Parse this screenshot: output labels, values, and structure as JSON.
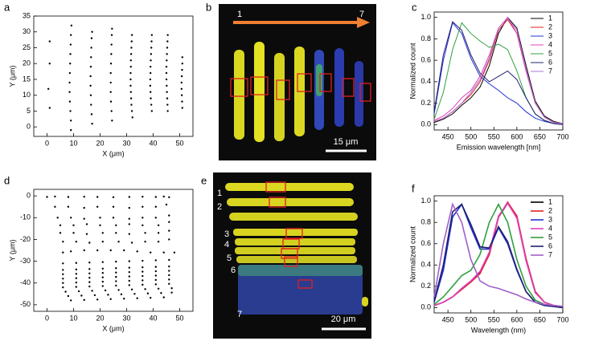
{
  "chart_data": [
    {
      "type": "scatter",
      "panel_label": "a",
      "xlabel": "X (μm)",
      "ylabel": "Y (μm)",
      "xlim": [
        -5,
        55
      ],
      "ylim": [
        -3,
        35
      ],
      "xticks": [
        0,
        10,
        20,
        30,
        40,
        50
      ],
      "yticks": [
        0,
        5,
        10,
        15,
        20,
        25,
        30,
        35
      ],
      "color": "#000000",
      "series": [
        {
          "x": [
            1,
            1,
            0.5,
            1
          ],
          "values": [
            27,
            20,
            12,
            6
          ]
        },
        {
          "x": [
            9,
            9,
            8.8,
            8.6,
            8.5,
            8.5,
            8.6,
            8.7,
            8.8,
            8.9,
            9,
            9.2
          ],
          "values": [
            -1,
            2,
            5,
            8,
            11,
            14,
            17,
            20,
            23,
            26,
            29,
            32
          ]
        },
        {
          "x": [
            17,
            16.8,
            16.6,
            16.5,
            16.4,
            16.4,
            16.5,
            16.6,
            16.7,
            16.8,
            17
          ],
          "values": [
            1,
            4,
            7,
            10,
            13,
            16,
            19,
            22,
            25,
            28,
            30
          ]
        },
        {
          "x": [
            24.5,
            24.3,
            24.1,
            24,
            24,
            24,
            24.1,
            24.2,
            24.3,
            24.4,
            24.5
          ],
          "values": [
            2,
            5,
            8,
            11,
            14,
            17,
            20,
            23,
            26,
            29,
            31
          ]
        },
        {
          "x": [
            32.2,
            32,
            31.8,
            31.7,
            31.6,
            31.5,
            31.5,
            31.5,
            31.6,
            31.6,
            31.7,
            31.8,
            31.9,
            32
          ],
          "values": [
            3,
            5,
            7,
            9,
            11,
            13,
            15,
            17,
            19,
            21,
            23,
            25,
            27,
            29
          ]
        },
        {
          "x": [
            39.5,
            39.3,
            39.1,
            39,
            38.9,
            38.9,
            39,
            39,
            39.1,
            39.2,
            39.3,
            39.4,
            39.5
          ],
          "values": [
            5,
            7,
            9,
            11,
            13,
            15,
            17,
            19,
            21,
            23,
            25,
            27,
            29
          ]
        },
        {
          "x": [
            45.5,
            45.4,
            45.3,
            45.2,
            45.1,
            45,
            45,
            45,
            45.1,
            45.2,
            45.3,
            45.4,
            45.5
          ],
          "values": [
            5,
            7,
            9,
            11,
            13,
            15,
            17,
            19,
            21,
            23,
            25,
            27,
            29
          ]
        },
        {
          "x": [
            51,
            50.9,
            50.8,
            50.7,
            50.7,
            50.8,
            50.9,
            51,
            51
          ],
          "values": [
            6,
            8,
            10,
            12,
            14,
            16,
            18,
            20,
            22
          ]
        }
      ]
    },
    {
      "type": "image",
      "panel_label": "b",
      "labels": [
        "1",
        "7"
      ],
      "scale_bar": "15 μm"
    },
    {
      "type": "line",
      "panel_label": "c",
      "xlabel": "Emission wavelength [nm]",
      "ylabel": "Normalized count",
      "xlim": [
        420,
        700
      ],
      "ylim": [
        -0.05,
        1.05
      ],
      "xticks": [
        450,
        500,
        550,
        600,
        650,
        700
      ],
      "yticks": [
        {
          "value": 0,
          "label": "0.0"
        },
        {
          "value": 0.2,
          "label": "0.2"
        },
        {
          "value": 0.4,
          "label": "0.4"
        },
        {
          "value": 0.6,
          "label": "0.6"
        },
        {
          "value": 0.8,
          "label": "0.8"
        },
        {
          "value": 1,
          "label": "1.0"
        }
      ],
      "legend": "upper right",
      "line_width": 1,
      "x": [
        420,
        440,
        460,
        480,
        500,
        520,
        540,
        560,
        580,
        600,
        620,
        640,
        660,
        680,
        700
      ],
      "series": [
        {
          "name": "1",
          "color": "#000000",
          "values": [
            0.02,
            0.05,
            0.1,
            0.18,
            0.25,
            0.35,
            0.55,
            0.85,
            1.0,
            0.9,
            0.55,
            0.22,
            0.08,
            0.03,
            0.01
          ]
        },
        {
          "name": "2",
          "color": "#e02020",
          "values": [
            0.03,
            0.06,
            0.12,
            0.2,
            0.28,
            0.4,
            0.6,
            0.88,
            0.98,
            0.85,
            0.5,
            0.2,
            0.07,
            0.02,
            0.01
          ]
        },
        {
          "name": "3",
          "color": "#2030d0",
          "values": [
            0.1,
            0.6,
            0.95,
            0.85,
            0.62,
            0.45,
            0.38,
            0.32,
            0.25,
            0.2,
            0.12,
            0.06,
            0.03,
            0.01,
            0.0
          ]
        },
        {
          "name": "4",
          "color": "#e040c0",
          "values": [
            0.04,
            0.08,
            0.15,
            0.25,
            0.32,
            0.45,
            0.65,
            0.9,
            1.0,
            0.85,
            0.5,
            0.2,
            0.07,
            0.02,
            0.01
          ]
        },
        {
          "name": "5",
          "color": "#30a040",
          "values": [
            0.05,
            0.3,
            0.7,
            0.95,
            0.85,
            0.78,
            0.72,
            0.75,
            0.7,
            0.5,
            0.25,
            0.1,
            0.04,
            0.01,
            0.0
          ]
        },
        {
          "name": "6",
          "color": "#202070",
          "values": [
            0.12,
            0.65,
            0.96,
            0.88,
            0.65,
            0.48,
            0.4,
            0.45,
            0.5,
            0.42,
            0.25,
            0.1,
            0.04,
            0.01,
            0.0
          ]
        },
        {
          "name": "7",
          "color": "#b070d0",
          "values": [
            0.03,
            0.06,
            0.12,
            0.2,
            0.3,
            0.42,
            0.62,
            0.9,
            0.99,
            0.88,
            0.52,
            0.2,
            0.07,
            0.02,
            0.01
          ]
        }
      ]
    },
    {
      "type": "scatter",
      "panel_label": "d",
      "xlabel": "X (μm)",
      "ylabel": "Y (μm)",
      "xlim": [
        -5,
        55
      ],
      "ylim": [
        -53,
        3
      ],
      "xticks": [
        0,
        10,
        20,
        30,
        40,
        50
      ],
      "yticks": [
        0,
        -10,
        -20,
        -30,
        -40,
        -50
      ],
      "color": "#000000",
      "series": [
        {
          "x": [
            0,
            3,
            8,
            14,
            19,
            25,
            31,
            36,
            41,
            44,
            46
          ],
          "values": [
            -0.5,
            -0.3,
            -0.5,
            -0.4,
            -0.5,
            -0.6,
            -0.5,
            -0.4,
            -0.5,
            -0.3,
            -0.6
          ]
        },
        {
          "x": [
            3,
            8,
            14,
            19,
            25,
            31,
            36,
            41,
            45
          ],
          "values": [
            -5,
            -5,
            -5.5,
            -5,
            -5,
            -5.5,
            -5,
            -5,
            -4
          ]
        },
        {
          "x": [
            4,
            9,
            14,
            20,
            25,
            31,
            36,
            41,
            46
          ],
          "values": [
            -10,
            -10,
            -10.5,
            -10,
            -10,
            -10.5,
            -10,
            -10,
            -9
          ]
        },
        {
          "x": [
            5,
            10,
            15,
            20,
            26,
            31,
            36,
            42,
            46
          ],
          "values": [
            -13.5,
            -13.5,
            -13,
            -13.5,
            -13.5,
            -13,
            -13.5,
            -13.5,
            -12
          ]
        },
        {
          "x": [
            5,
            10,
            15,
            21,
            26,
            31,
            37,
            42,
            46
          ],
          "values": [
            -17,
            -17,
            -17.5,
            -17,
            -17,
            -17.5,
            -17,
            -17,
            -16
          ]
        },
        {
          "x": [
            6,
            11,
            16,
            21,
            27,
            32,
            37,
            42,
            46
          ],
          "values": [
            -21,
            -21,
            -21.5,
            -21,
            -21,
            -21.5,
            -21,
            -21,
            -20
          ]
        },
        {
          "x": [
            6,
            9,
            14,
            19,
            24,
            29,
            34,
            39,
            44,
            48
          ],
          "values": [
            -26,
            -25.5,
            -25,
            -25,
            -25,
            -25,
            -25.5,
            -26,
            -26,
            -26
          ]
        },
        {
          "x": [
            6,
            11,
            16,
            21,
            26,
            31,
            36,
            41,
            46
          ],
          "values": [
            -31,
            -30.8,
            -30.6,
            -30.4,
            -30.2,
            -30,
            -29.8,
            -29.6,
            -29.4
          ]
        },
        {
          "x": [
            6,
            11,
            16,
            21,
            26,
            31,
            36,
            41,
            46
          ],
          "values": [
            -34,
            -33.8,
            -33.6,
            -33.4,
            -33.2,
            -33,
            -32.8,
            -32.6,
            -32.4
          ]
        },
        {
          "x": [
            6,
            11,
            16,
            21,
            26,
            31,
            36,
            41,
            46
          ],
          "values": [
            -36,
            -35.8,
            -35.6,
            -35.4,
            -35.2,
            -35,
            -34.8,
            -34.6,
            -34.4
          ]
        },
        {
          "x": [
            6,
            11,
            16,
            21,
            26,
            31,
            36,
            41,
            46
          ],
          "values": [
            -38,
            -37.8,
            -37.6,
            -37.4,
            -37.2,
            -37,
            -36.8,
            -36.6,
            -36.4
          ]
        },
        {
          "x": [
            6,
            11,
            16,
            21,
            26,
            31,
            36,
            41,
            46
          ],
          "values": [
            -40,
            -39.8,
            -39.6,
            -39.4,
            -39.2,
            -39,
            -38.8,
            -38.6,
            -38.4
          ]
        },
        {
          "x": [
            6,
            11,
            16,
            21,
            26,
            31,
            36,
            41,
            46
          ],
          "values": [
            -42,
            -41.8,
            -41.6,
            -41.4,
            -41.2,
            -41,
            -40.8,
            -40.6,
            -40.4
          ]
        },
        {
          "x": [
            7,
            12,
            17,
            22,
            27,
            32,
            37,
            42,
            47
          ],
          "values": [
            -44,
            -43.8,
            -43.6,
            -43.4,
            -43.2,
            -43,
            -42.8,
            -42.6,
            -42.4
          ]
        },
        {
          "x": [
            8,
            13,
            18,
            23,
            28,
            33,
            38,
            43,
            47
          ],
          "values": [
            -46,
            -45.8,
            -45.6,
            -45.4,
            -45.2,
            -45,
            -44.8,
            -44.6,
            -44.4
          ]
        },
        {
          "x": [
            9,
            14,
            19,
            24,
            29,
            34,
            39,
            44
          ],
          "values": [
            -48,
            -47.8,
            -47.6,
            -47.4,
            -47.2,
            -47,
            -46.8,
            -46.6
          ]
        }
      ]
    },
    {
      "type": "image",
      "panel_label": "e",
      "labels": [
        "1",
        "2",
        "3",
        "4",
        "5",
        "6",
        "7"
      ],
      "scale_bar": "20 μm"
    },
    {
      "type": "line",
      "panel_label": "f",
      "xlabel": "Wavelength (nm)",
      "ylabel": "Normalized count",
      "xlim": [
        420,
        700
      ],
      "ylim": [
        -0.05,
        1.05
      ],
      "xticks": [
        450,
        500,
        550,
        600,
        650,
        700
      ],
      "yticks": [
        {
          "value": 0,
          "label": "0.0"
        },
        {
          "value": 0.2,
          "label": "0.2"
        },
        {
          "value": 0.4,
          "label": "0.4"
        },
        {
          "value": 0.6,
          "label": "0.6"
        },
        {
          "value": 0.8,
          "label": "0.8"
        },
        {
          "value": 1,
          "label": "1.0"
        }
      ],
      "legend": "upper right",
      "line_width": 1.6,
      "x": [
        420,
        440,
        460,
        480,
        500,
        520,
        540,
        560,
        580,
        600,
        620,
        640,
        660,
        680,
        700
      ],
      "series": [
        {
          "name": "1",
          "color": "#000000",
          "values": [
            0.02,
            0.05,
            0.1,
            0.18,
            0.25,
            0.33,
            0.5,
            0.85,
            0.98,
            0.85,
            0.45,
            0.15,
            0.05,
            0.02,
            0.01
          ]
        },
        {
          "name": "2",
          "color": "#e02020",
          "values": [
            0.02,
            0.05,
            0.1,
            0.17,
            0.24,
            0.32,
            0.5,
            0.85,
            0.99,
            0.86,
            0.46,
            0.15,
            0.05,
            0.02,
            0.01
          ]
        },
        {
          "name": "3",
          "color": "#2030d0",
          "values": [
            0.05,
            0.35,
            0.85,
            0.97,
            0.75,
            0.55,
            0.55,
            0.75,
            0.6,
            0.35,
            0.15,
            0.05,
            0.02,
            0.01,
            0.0
          ]
        },
        {
          "name": "4",
          "color": "#e040c0",
          "values": [
            0.02,
            0.05,
            0.1,
            0.18,
            0.25,
            0.34,
            0.52,
            0.86,
            0.98,
            0.84,
            0.44,
            0.14,
            0.05,
            0.02,
            0.01
          ]
        },
        {
          "name": "5",
          "color": "#30a040",
          "values": [
            0.03,
            0.1,
            0.2,
            0.3,
            0.35,
            0.5,
            0.8,
            0.97,
            0.8,
            0.45,
            0.2,
            0.07,
            0.03,
            0.01,
            0.0
          ]
        },
        {
          "name": "6",
          "color": "#202070",
          "values": [
            0.06,
            0.4,
            0.9,
            0.97,
            0.78,
            0.57,
            0.56,
            0.76,
            0.62,
            0.36,
            0.15,
            0.05,
            0.02,
            0.01,
            0.0
          ]
        },
        {
          "name": "7",
          "color": "#a060c8",
          "values": [
            0.1,
            0.6,
            0.97,
            0.8,
            0.45,
            0.25,
            0.2,
            0.18,
            0.15,
            0.12,
            0.08,
            0.05,
            0.03,
            0.02,
            0.01
          ]
        }
      ]
    }
  ]
}
